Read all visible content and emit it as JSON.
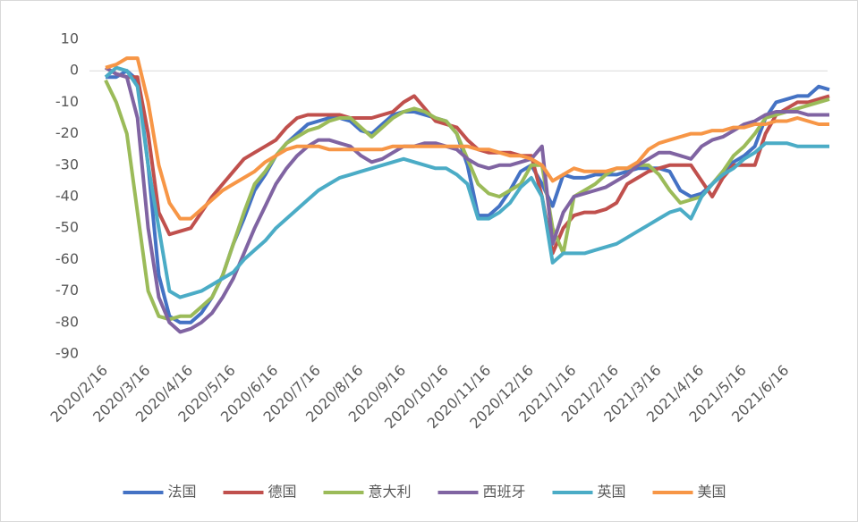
{
  "chart_data": {
    "type": "line",
    "categories": [
      "2020/2/16",
      null,
      null,
      null,
      "2020/3/16",
      null,
      null,
      null,
      "2020/4/16",
      null,
      null,
      null,
      "2020/5/16",
      null,
      null,
      null,
      "2020/6/16",
      null,
      null,
      null,
      "2020/7/16",
      null,
      null,
      null,
      "2020/8/16",
      null,
      null,
      null,
      "2020/9/16",
      null,
      null,
      null,
      "2020/10/16",
      null,
      null,
      null,
      "2020/11/16",
      null,
      null,
      null,
      "2020/12/16",
      null,
      null,
      null,
      "2021/1/16",
      null,
      null,
      null,
      "2021/2/16",
      null,
      null,
      null,
      "2021/3/16",
      null,
      null,
      null,
      "2021/4/16",
      null,
      null,
      null,
      "2021/5/16",
      null,
      null,
      null,
      "2021/6/16",
      null,
      null,
      null,
      null
    ],
    "series": [
      {
        "name": "法国",
        "color": "#4472c4",
        "values": [
          -2,
          -2,
          0,
          -3,
          -30,
          -65,
          -78,
          -80,
          -80,
          -77,
          -72,
          -65,
          -55,
          -47,
          -38,
          -33,
          -27,
          -23,
          -20,
          -17,
          -16,
          -15,
          -15,
          -16,
          -19,
          -20,
          -17,
          -14,
          -13,
          -13,
          -14,
          -15,
          -16,
          -20,
          -30,
          -46,
          -46,
          -43,
          -38,
          -32,
          -30,
          -36,
          -43,
          -33,
          -34,
          -34,
          -33,
          -33,
          -33,
          -32,
          -31,
          -31,
          -31,
          -32,
          -38,
          -40,
          -39,
          -36,
          -32,
          -29,
          -27,
          -24,
          -15,
          -10,
          -9,
          -8,
          -8,
          -5,
          -6
        ]
      },
      {
        "name": "德国",
        "color": "#c0504d",
        "values": [
          1,
          -1,
          -2,
          -2,
          -20,
          -45,
          -52,
          -51,
          -50,
          -45,
          -40,
          -36,
          -32,
          -28,
          -26,
          -24,
          -22,
          -18,
          -15,
          -14,
          -14,
          -14,
          -14,
          -15,
          -15,
          -15,
          -14,
          -13,
          -10,
          -8,
          -12,
          -16,
          -17,
          -18,
          -22,
          -25,
          -26,
          -26,
          -26,
          -27,
          -27,
          -40,
          -58,
          -50,
          -46,
          -45,
          -45,
          -44,
          -42,
          -36,
          -34,
          -32,
          -31,
          -30,
          -30,
          -30,
          -35,
          -40,
          -34,
          -30,
          -30,
          -30,
          -20,
          -14,
          -12,
          -10,
          -10,
          -9,
          -8
        ]
      },
      {
        "name": "意大利",
        "color": "#9bbb59",
        "values": [
          -3,
          -10,
          -20,
          -45,
          -70,
          -78,
          -79,
          -78,
          -78,
          -75,
          -72,
          -65,
          -55,
          -45,
          -36,
          -32,
          -27,
          -23,
          -21,
          -19,
          -18,
          -16,
          -15,
          -15,
          -18,
          -21,
          -18,
          -15,
          -13,
          -12,
          -13,
          -15,
          -16,
          -20,
          -28,
          -36,
          -39,
          -40,
          -38,
          -36,
          -30,
          -30,
          -50,
          -58,
          -40,
          -38,
          -36,
          -33,
          -31,
          -31,
          -30,
          -30,
          -33,
          -38,
          -42,
          -41,
          -40,
          -36,
          -32,
          -27,
          -24,
          -20,
          -15,
          -14,
          -13,
          -12,
          -11,
          -10,
          -9
        ]
      },
      {
        "name": "西班牙",
        "color": "#8064a2",
        "values": [
          1,
          -1,
          -2,
          -15,
          -50,
          -72,
          -80,
          -83,
          -82,
          -80,
          -77,
          -72,
          -66,
          -58,
          -50,
          -43,
          -36,
          -31,
          -27,
          -24,
          -22,
          -22,
          -23,
          -24,
          -27,
          -29,
          -28,
          -26,
          -24,
          -24,
          -23,
          -23,
          -24,
          -25,
          -28,
          -30,
          -31,
          -30,
          -30,
          -29,
          -28,
          -24,
          -55,
          -45,
          -40,
          -39,
          -38,
          -37,
          -35,
          -33,
          -30,
          -28,
          -26,
          -26,
          -27,
          -28,
          -24,
          -22,
          -21,
          -19,
          -17,
          -16,
          -14,
          -13,
          -13,
          -13,
          -14,
          -14,
          -14
        ]
      },
      {
        "name": "英国",
        "color": "#4bacc6",
        "values": [
          -2,
          1,
          0,
          -5,
          -30,
          -50,
          -70,
          -72,
          -71,
          -70,
          -68,
          -66,
          -64,
          -60,
          -57,
          -54,
          -50,
          -47,
          -44,
          -41,
          -38,
          -36,
          -34,
          -33,
          -32,
          -31,
          -30,
          -29,
          -28,
          -29,
          -30,
          -31,
          -31,
          -33,
          -36,
          -47,
          -47,
          -45,
          -42,
          -37,
          -34,
          -40,
          -61,
          -58,
          -58,
          -58,
          -57,
          -56,
          -55,
          -53,
          -51,
          -49,
          -47,
          -45,
          -44,
          -47,
          -40,
          -36,
          -33,
          -31,
          -28,
          -26,
          -23,
          -23,
          -23,
          -24,
          -24,
          -24,
          -24
        ]
      },
      {
        "name": "美国",
        "color": "#f79646",
        "values": [
          1,
          2,
          4,
          4,
          -10,
          -30,
          -42,
          -47,
          -47,
          -44,
          -41,
          -38,
          -36,
          -34,
          -32,
          -29,
          -27,
          -25,
          -24,
          -24,
          -24,
          -25,
          -25,
          -25,
          -25,
          -25,
          -25,
          -24,
          -24,
          -24,
          -24,
          -24,
          -24,
          -24,
          -24,
          -25,
          -25,
          -26,
          -27,
          -27,
          -28,
          -30,
          -35,
          -33,
          -31,
          -32,
          -32,
          -32,
          -31,
          -31,
          -29,
          -25,
          -23,
          -22,
          -21,
          -20,
          -20,
          -19,
          -19,
          -18,
          -18,
          -17,
          -17,
          -16,
          -16,
          -15,
          -16,
          -17,
          -17
        ]
      }
    ],
    "ylim": [
      -90,
      10
    ],
    "yticks": [
      -90,
      -80,
      -70,
      -60,
      -50,
      -40,
      -30,
      -20,
      -10,
      0,
      10
    ]
  }
}
